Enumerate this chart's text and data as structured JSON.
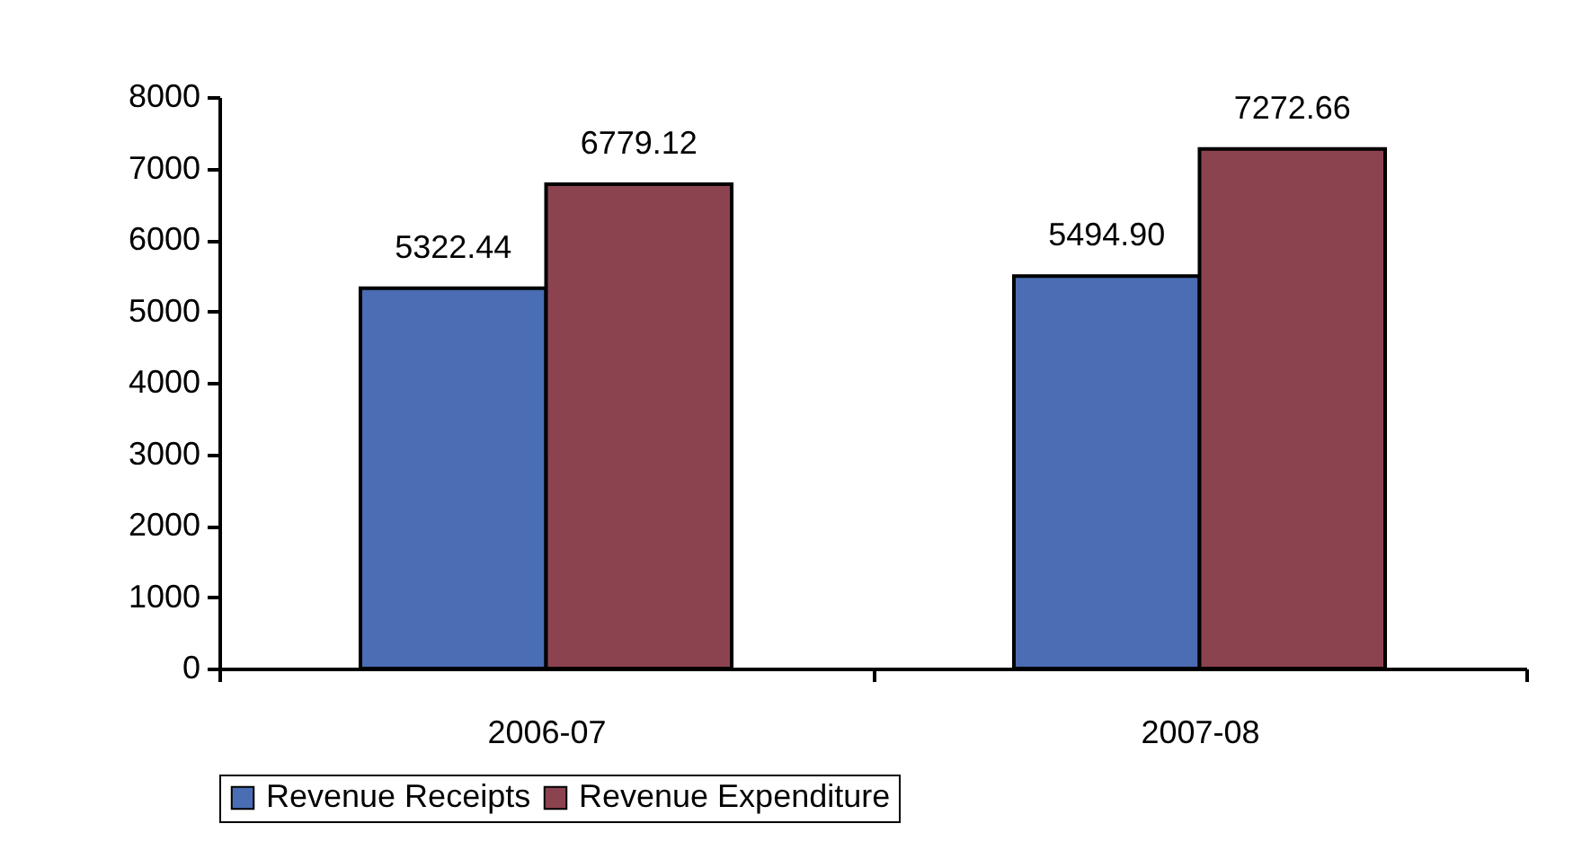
{
  "chart_data": {
    "type": "bar",
    "categories": [
      "2006-07",
      "2007-08"
    ],
    "series": [
      {
        "name": "Revenue Receipts",
        "color": "#4a6db3",
        "values": [
          5322.44,
          5494.9
        ],
        "value_labels": [
          "5322.44",
          "5494.90"
        ]
      },
      {
        "name": "Revenue Expenditure",
        "color": "#8c4350",
        "values": [
          6779.12,
          7272.66
        ],
        "value_labels": [
          "6779.12",
          "7272.66"
        ]
      }
    ],
    "ylim": [
      0,
      8000
    ],
    "yticks": [
      0,
      1000,
      2000,
      3000,
      4000,
      5000,
      6000,
      7000,
      8000
    ],
    "legend": "bottom"
  }
}
